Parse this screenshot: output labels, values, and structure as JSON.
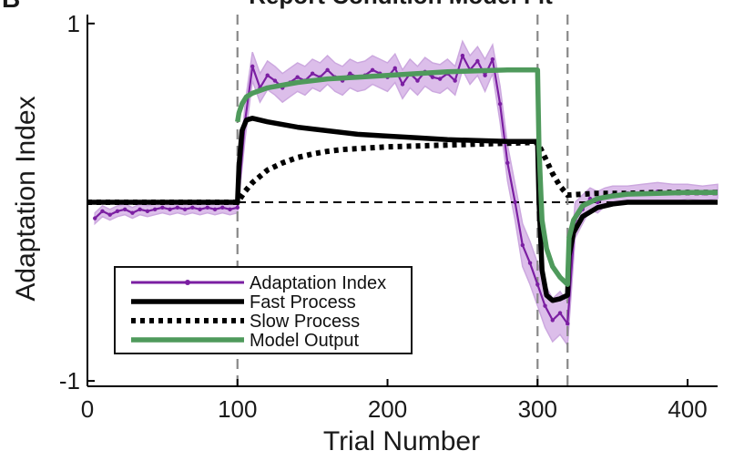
{
  "panel_letter": "B",
  "title": "Report Condition Model Fit",
  "chart_data": {
    "type": "line",
    "title": "Report Condition Model Fit",
    "xlabel": "Trial Number",
    "ylabel": "Adaptation Index",
    "xlim": [
      0,
      420
    ],
    "ylim": [
      -1.03,
      1.05
    ],
    "xticks": [
      0,
      100,
      200,
      300,
      400
    ],
    "yticks": [
      -1,
      1
    ],
    "grid": false,
    "legend_position": "bottom-left",
    "phase_boundaries": [
      100,
      300,
      320
    ],
    "baseline": 0,
    "colors": {
      "adaptation": "#7b1fa2",
      "adaptation_band": "#d9b8e8",
      "fast": "#000000",
      "slow": "#000000",
      "model": "#4f9a5c"
    },
    "series": [
      {
        "name": "Adaptation Index",
        "style": "line-with-points",
        "x": [
          5,
          10,
          15,
          20,
          25,
          30,
          35,
          40,
          45,
          50,
          55,
          60,
          65,
          70,
          75,
          80,
          85,
          90,
          95,
          100,
          105,
          110,
          115,
          120,
          125,
          130,
          135,
          140,
          145,
          150,
          155,
          160,
          165,
          170,
          175,
          180,
          185,
          190,
          195,
          200,
          205,
          210,
          215,
          220,
          225,
          230,
          235,
          240,
          245,
          250,
          255,
          260,
          265,
          270,
          275,
          280,
          285,
          290,
          295,
          300,
          305,
          310,
          315,
          320,
          325,
          330,
          335,
          340,
          345,
          350,
          360,
          370,
          380,
          390,
          400,
          410,
          420
        ],
        "values": [
          -0.09,
          -0.05,
          -0.07,
          -0.05,
          -0.04,
          -0.06,
          -0.04,
          -0.05,
          -0.04,
          -0.03,
          -0.04,
          -0.03,
          -0.04,
          -0.03,
          -0.04,
          -0.03,
          -0.04,
          -0.03,
          -0.04,
          -0.03,
          0.45,
          0.76,
          0.64,
          0.71,
          0.68,
          0.64,
          0.67,
          0.7,
          0.68,
          0.72,
          0.7,
          0.74,
          0.7,
          0.68,
          0.72,
          0.7,
          0.71,
          0.74,
          0.72,
          0.7,
          0.75,
          0.66,
          0.72,
          0.68,
          0.73,
          0.7,
          0.69,
          0.72,
          0.68,
          0.82,
          0.74,
          0.79,
          0.71,
          0.8,
          0.55,
          0.22,
          0.0,
          -0.24,
          -0.34,
          -0.46,
          -0.58,
          -0.66,
          -0.62,
          -0.68,
          -0.1,
          -0.04,
          0.02,
          0.0,
          0.03,
          0.04,
          0.05,
          0.05,
          0.06,
          0.05,
          0.06,
          0.05,
          0.06
        ],
        "upper": [
          -0.06,
          -0.02,
          -0.04,
          -0.02,
          -0.01,
          -0.03,
          -0.01,
          -0.02,
          -0.01,
          0.0,
          -0.01,
          0.0,
          -0.01,
          0.0,
          -0.01,
          0.0,
          -0.01,
          0.0,
          -0.01,
          0.0,
          0.55,
          0.84,
          0.72,
          0.79,
          0.76,
          0.72,
          0.75,
          0.78,
          0.76,
          0.8,
          0.78,
          0.82,
          0.78,
          0.76,
          0.8,
          0.78,
          0.79,
          0.82,
          0.8,
          0.78,
          0.83,
          0.74,
          0.8,
          0.76,
          0.81,
          0.78,
          0.77,
          0.8,
          0.76,
          0.9,
          0.82,
          0.87,
          0.8,
          0.88,
          0.65,
          0.32,
          0.1,
          -0.12,
          -0.22,
          -0.34,
          -0.46,
          -0.54,
          -0.5,
          -0.56,
          0.0,
          0.04,
          0.08,
          0.06,
          0.08,
          0.09,
          0.09,
          0.1,
          0.11,
          0.1,
          0.1,
          0.09,
          0.1
        ],
        "lower": [
          -0.12,
          -0.08,
          -0.1,
          -0.08,
          -0.07,
          -0.09,
          -0.07,
          -0.08,
          -0.07,
          -0.06,
          -0.07,
          -0.06,
          -0.07,
          -0.06,
          -0.07,
          -0.06,
          -0.07,
          -0.06,
          -0.07,
          -0.06,
          0.35,
          0.68,
          0.56,
          0.63,
          0.6,
          0.56,
          0.59,
          0.62,
          0.6,
          0.64,
          0.62,
          0.66,
          0.62,
          0.6,
          0.64,
          0.62,
          0.63,
          0.66,
          0.64,
          0.62,
          0.67,
          0.58,
          0.64,
          0.6,
          0.65,
          0.62,
          0.61,
          0.64,
          0.6,
          0.74,
          0.66,
          0.71,
          0.62,
          0.72,
          0.45,
          0.12,
          -0.1,
          -0.36,
          -0.46,
          -0.58,
          -0.7,
          -0.78,
          -0.74,
          -0.8,
          -0.2,
          -0.12,
          -0.04,
          -0.06,
          -0.02,
          -0.01,
          0.01,
          0.0,
          0.01,
          0.0,
          0.02,
          0.01,
          0.02
        ]
      },
      {
        "name": "Fast Process",
        "style": "solid",
        "x": [
          0,
          100,
          101,
          103,
          106,
          110,
          120,
          140,
          160,
          180,
          200,
          220,
          240,
          260,
          280,
          300,
          301,
          303,
          306,
          310,
          315,
          320,
          321,
          324,
          330,
          340,
          350,
          360,
          380,
          400,
          420
        ],
        "values": [
          0,
          0,
          0.2,
          0.4,
          0.46,
          0.47,
          0.45,
          0.42,
          0.4,
          0.38,
          0.37,
          0.36,
          0.35,
          0.345,
          0.34,
          0.34,
          0.0,
          -0.38,
          -0.52,
          -0.55,
          -0.54,
          -0.52,
          -0.3,
          -0.17,
          -0.08,
          -0.03,
          -0.01,
          0.0,
          0.0,
          0.0,
          0.0
        ]
      },
      {
        "name": "Slow Process",
        "style": "dotted",
        "x": [
          0,
          100,
          105,
          110,
          120,
          130,
          140,
          150,
          160,
          170,
          180,
          200,
          220,
          240,
          260,
          280,
          300,
          305,
          310,
          315,
          320,
          330,
          340,
          360,
          380,
          400,
          420
        ],
        "values": [
          0,
          0,
          0.06,
          0.11,
          0.18,
          0.22,
          0.25,
          0.27,
          0.285,
          0.295,
          0.3,
          0.31,
          0.315,
          0.32,
          0.325,
          0.33,
          0.335,
          0.25,
          0.16,
          0.09,
          0.04,
          0.045,
          0.05,
          0.05,
          0.055,
          0.055,
          0.055
        ]
      },
      {
        "name": "Model Output",
        "style": "solid",
        "x": [
          100,
          101,
          103,
          106,
          110,
          120,
          140,
          160,
          180,
          200,
          220,
          240,
          260,
          280,
          300,
          301,
          303,
          306,
          310,
          315,
          320,
          321,
          324,
          330,
          340,
          350,
          360,
          380,
          400,
          420
        ],
        "values": [
          0.45,
          0.5,
          0.55,
          0.59,
          0.61,
          0.64,
          0.67,
          0.69,
          0.7,
          0.71,
          0.72,
          0.73,
          0.735,
          0.74,
          0.74,
          0.3,
          -0.1,
          -0.26,
          -0.36,
          -0.42,
          -0.46,
          -0.2,
          -0.1,
          -0.02,
          0.02,
          0.035,
          0.045,
          0.05,
          0.055,
          0.055
        ]
      }
    ]
  }
}
